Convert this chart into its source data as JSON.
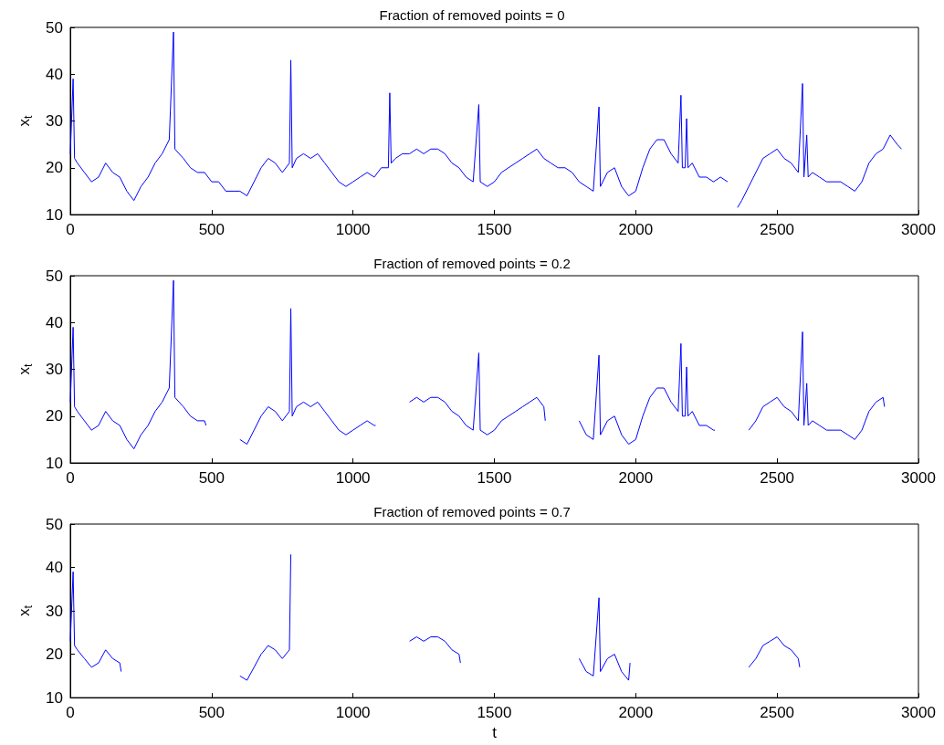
{
  "chart_data": [
    {
      "type": "line",
      "title": "Fraction of removed points = 0",
      "ylabel": "x$_{t}$",
      "xlim": [
        0,
        3000
      ],
      "xticks": [
        0,
        500,
        1000,
        1500,
        2000,
        2500,
        3000
      ],
      "ylim": [
        10,
        50
      ],
      "yticks": [
        10,
        20,
        30,
        40,
        50
      ],
      "grid": false,
      "marker": "none",
      "line_style": "solid",
      "series": [
        {
          "color": "#0000ff",
          "x": [
            0,
            10,
            15,
            25,
            50,
            75,
            100,
            125,
            150,
            175,
            200,
            225,
            250,
            275,
            300,
            325,
            350,
            365,
            370,
            400,
            425,
            450,
            475,
            500,
            525,
            550,
            575,
            600,
            625,
            650,
            675,
            700,
            725,
            750,
            775,
            780,
            785,
            800,
            825,
            850,
            875,
            900,
            925,
            950,
            975,
            1000,
            1025,
            1050,
            1075,
            1100,
            1125,
            1130,
            1135,
            1150,
            1175,
            1200,
            1225,
            1250,
            1275,
            1300,
            1325,
            1350,
            1375,
            1400,
            1425,
            1445,
            1450,
            1475,
            1500,
            1525,
            1550,
            1575,
            1600,
            1625,
            1650,
            1675,
            1700,
            1725,
            1750,
            1775,
            1800,
            1825,
            1850,
            1870,
            1875,
            1900,
            1925,
            1950,
            1975,
            2000,
            2025,
            2050,
            2075,
            2100,
            2125,
            2150,
            2160,
            2165,
            2175,
            2180,
            2185,
            2200,
            2225,
            2250,
            2275,
            2300,
            2325,
            2340,
            2360,
            2375,
            2400,
            2425,
            2450,
            2475,
            2500,
            2525,
            2550,
            2575,
            2590,
            2595,
            2605,
            2610,
            2625,
            2650,
            2675,
            2700,
            2725,
            2750,
            2775,
            2800,
            2825,
            2850,
            2875,
            2900,
            2925,
            2940
          ],
          "values": [
            23,
            39,
            22,
            21,
            19,
            17,
            18,
            21,
            19,
            18,
            15,
            13,
            16,
            18,
            21,
            23,
            26,
            49,
            24,
            22,
            20,
            19,
            19,
            17,
            17,
            15,
            15,
            15,
            14,
            17,
            20,
            22,
            21,
            19,
            21,
            43,
            20,
            22,
            23,
            22,
            23,
            21,
            19,
            17,
            16,
            17,
            18,
            19,
            18,
            20,
            20,
            36,
            21,
            22,
            23,
            23,
            24,
            23,
            24,
            24,
            23,
            21,
            20,
            18,
            17,
            33.5,
            17,
            16,
            17,
            19,
            20,
            21,
            22,
            23,
            24,
            22,
            21,
            20,
            20,
            19,
            17,
            16,
            15,
            33,
            16,
            19,
            20,
            16,
            14,
            15,
            20,
            24,
            26,
            26,
            23,
            21,
            35.5,
            20,
            20,
            30.5,
            20,
            21,
            18,
            18,
            17,
            18,
            17,
            null,
            11.5,
            13,
            16,
            19,
            22,
            23,
            24,
            22,
            21,
            19,
            38,
            18,
            27,
            18,
            19,
            18,
            17,
            17,
            17,
            16,
            15,
            17,
            21,
            23,
            24,
            27,
            25,
            24
          ]
        }
      ]
    },
    {
      "type": "line",
      "title": "Fraction of removed points = 0.2",
      "ylabel": "x$_{t}$",
      "xlim": [
        0,
        3000
      ],
      "xticks": [
        0,
        500,
        1000,
        1500,
        2000,
        2500,
        3000
      ],
      "ylim": [
        10,
        50
      ],
      "yticks": [
        10,
        20,
        30,
        40,
        50
      ],
      "grid": false,
      "marker": "none",
      "line_style": "solid",
      "series": [
        {
          "color": "#0000ff",
          "x": [
            0,
            10,
            15,
            25,
            50,
            75,
            100,
            125,
            150,
            175,
            200,
            225,
            250,
            275,
            300,
            325,
            350,
            365,
            370,
            400,
            425,
            450,
            475,
            480,
            540,
            600,
            625,
            650,
            675,
            700,
            725,
            750,
            775,
            780,
            785,
            800,
            825,
            850,
            875,
            900,
            925,
            950,
            975,
            1000,
            1025,
            1050,
            1075,
            1080,
            1140,
            1200,
            1225,
            1250,
            1275,
            1300,
            1325,
            1350,
            1375,
            1400,
            1425,
            1445,
            1450,
            1475,
            1500,
            1525,
            1550,
            1575,
            1600,
            1625,
            1650,
            1675,
            1680,
            1740,
            1800,
            1825,
            1850,
            1870,
            1875,
            1900,
            1925,
            1950,
            1975,
            2000,
            2025,
            2050,
            2075,
            2100,
            2125,
            2150,
            2160,
            2165,
            2175,
            2180,
            2185,
            2200,
            2225,
            2250,
            2275,
            2280,
            2340,
            2400,
            2425,
            2450,
            2475,
            2500,
            2525,
            2550,
            2575,
            2590,
            2595,
            2605,
            2610,
            2625,
            2650,
            2675,
            2700,
            2725,
            2750,
            2775,
            2800,
            2825,
            2850,
            2875,
            2880
          ],
          "values": [
            23,
            39,
            22,
            21,
            19,
            17,
            18,
            21,
            19,
            18,
            15,
            13,
            16,
            18,
            21,
            23,
            26,
            49,
            24,
            22,
            20,
            19,
            19,
            18,
            null,
            15,
            14,
            17,
            20,
            22,
            21,
            19,
            21,
            43,
            20,
            22,
            23,
            22,
            23,
            21,
            19,
            17,
            16,
            17,
            18,
            19,
            18,
            18,
            null,
            23,
            24,
            23,
            24,
            24,
            23,
            21,
            20,
            18,
            17,
            33.5,
            17,
            16,
            17,
            19,
            20,
            21,
            22,
            23,
            24,
            22,
            19,
            null,
            19,
            16,
            15,
            33,
            16,
            19,
            20,
            16,
            14,
            15,
            20,
            24,
            26,
            26,
            23,
            21,
            35.5,
            20,
            20,
            30.5,
            20,
            21,
            18,
            18,
            17,
            17,
            null,
            17,
            19,
            22,
            23,
            24,
            22,
            21,
            19,
            38,
            18,
            27,
            18,
            19,
            18,
            17,
            17,
            17,
            16,
            15,
            17,
            21,
            23,
            24,
            22
          ]
        }
      ]
    },
    {
      "type": "line",
      "title": "Fraction of removed points = 0.7",
      "xlabel": "t",
      "ylabel": "x$_{t}$",
      "xlim": [
        0,
        3000
      ],
      "xticks": [
        0,
        500,
        1000,
        1500,
        2000,
        2500,
        3000
      ],
      "ylim": [
        10,
        50
      ],
      "yticks": [
        10,
        20,
        30,
        40,
        50
      ],
      "grid": false,
      "marker": "none",
      "line_style": "solid",
      "series": [
        {
          "color": "#0000ff",
          "x": [
            0,
            10,
            15,
            25,
            50,
            75,
            100,
            125,
            150,
            175,
            180,
            390,
            600,
            625,
            650,
            675,
            700,
            725,
            750,
            775,
            780,
            990,
            1200,
            1225,
            1250,
            1275,
            1300,
            1325,
            1350,
            1375,
            1380,
            1590,
            1800,
            1825,
            1850,
            1870,
            1875,
            1900,
            1925,
            1950,
            1975,
            1980,
            2190,
            2400,
            2425,
            2450,
            2475,
            2500,
            2525,
            2550,
            2575,
            2580
          ],
          "values": [
            23,
            39,
            22,
            21,
            19,
            17,
            18,
            21,
            19,
            18,
            16,
            null,
            15,
            14,
            17,
            20,
            22,
            21,
            19,
            21,
            43,
            null,
            23,
            24,
            23,
            24,
            24,
            23,
            21,
            20,
            18,
            null,
            19,
            16,
            15,
            33,
            16,
            19,
            20,
            16,
            14,
            18,
            null,
            17,
            19,
            22,
            23,
            24,
            22,
            21,
            19,
            17
          ]
        }
      ]
    }
  ]
}
